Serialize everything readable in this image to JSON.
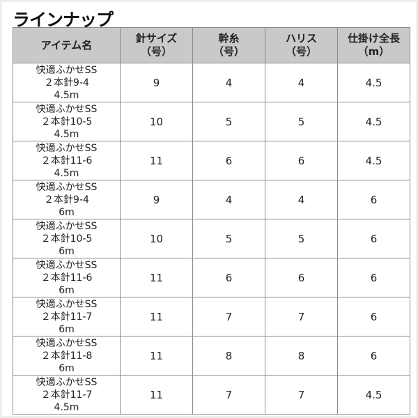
{
  "title": "ラインナップ",
  "columns": [
    "アイテム名",
    "針サイズ\n（号）",
    "幹糸\n（号）",
    "ハリス\n（号）",
    "仕掛け全長\n（m）"
  ],
  "rows": [
    {
      "name": [
        "快適ふかせSS",
        "２本針9-4",
        "4.5m"
      ],
      "hook": "9",
      "main": "4",
      "harisu": "4",
      "length": "4.5"
    },
    {
      "name": [
        "快適ふかせSS",
        "２本針10-5",
        "4.5m"
      ],
      "hook": "10",
      "main": "5",
      "harisu": "5",
      "length": "4.5"
    },
    {
      "name": [
        "快適ふかせSS",
        "２本針11-6",
        "4.5m"
      ],
      "hook": "11",
      "main": "6",
      "harisu": "6",
      "length": "4.5"
    },
    {
      "name": [
        "快適ふかせSS",
        "２本針9-4",
        "6m"
      ],
      "hook": "9",
      "main": "4",
      "harisu": "4",
      "length": "6"
    },
    {
      "name": [
        "快適ふかせSS",
        "２本針10-5",
        "6m"
      ],
      "hook": "10",
      "main": "5",
      "harisu": "5",
      "length": "6"
    },
    {
      "name": [
        "快適ふかせSS",
        "２本針11-6",
        "6m"
      ],
      "hook": "11",
      "main": "6",
      "harisu": "6",
      "length": "6"
    },
    {
      "name": [
        "快適ふかせSS",
        "２本針11-7",
        "6m"
      ],
      "hook": "11",
      "main": "7",
      "harisu": "7",
      "length": "6"
    },
    {
      "name": [
        "快適ふかせSS",
        "２本針11-8",
        "6m"
      ],
      "hook": "11",
      "main": "8",
      "harisu": "8",
      "length": "6"
    },
    {
      "name": [
        "快適ふかせSS",
        "２本針11-7",
        "4.5m"
      ],
      "hook": "11",
      "main": "7",
      "harisu": "7",
      "length": "4.5"
    }
  ]
}
